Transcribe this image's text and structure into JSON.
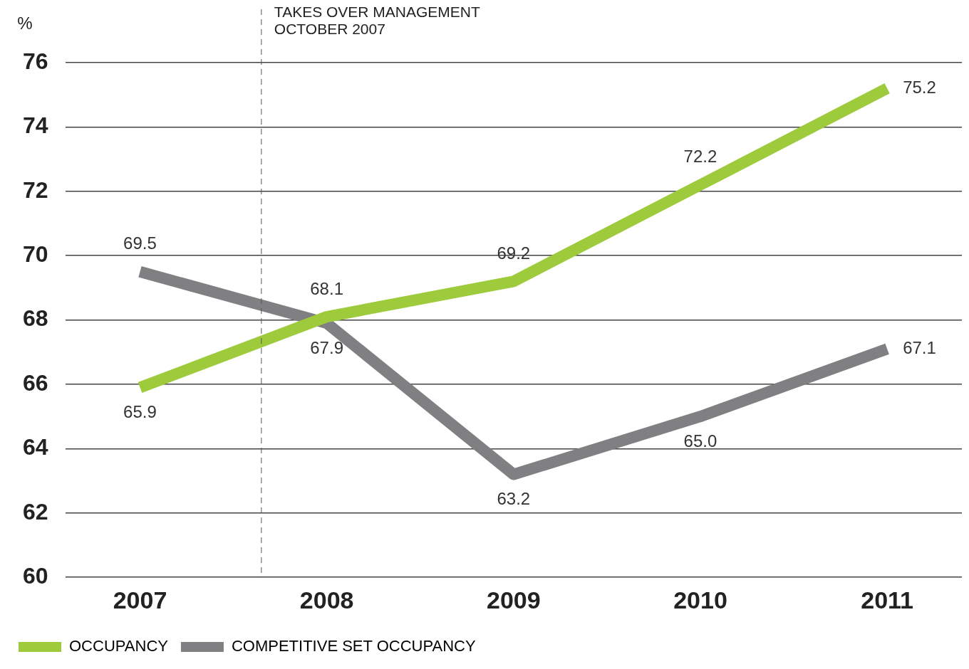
{
  "chart_data": {
    "type": "line",
    "ylabel": "%",
    "x": [
      2007,
      2008,
      2009,
      2010,
      2011
    ],
    "series": [
      {
        "name": "OCCUPANCY",
        "color": "#9dcb3b",
        "values": [
          65.9,
          68.1,
          69.2,
          72.2,
          75.2
        ],
        "value_labels": [
          "65.9",
          "68.1",
          "69.2",
          "72.2",
          "75.2"
        ]
      },
      {
        "name": "COMPETITIVE SET OCCUPANCY",
        "color": "#808083",
        "values": [
          69.5,
          67.9,
          63.2,
          65.0,
          67.1
        ],
        "value_labels": [
          "69.5",
          "67.9",
          "63.2",
          "65.0",
          "67.1"
        ]
      }
    ],
    "xlim": [
      2006.6,
      2011.4
    ],
    "xticks": [
      2007,
      2008,
      2009,
      2010,
      2011
    ],
    "ylim": [
      60,
      76
    ],
    "yticks": [
      60,
      62,
      64,
      66,
      68,
      70,
      72,
      74,
      76
    ],
    "ref_lines": [
      {
        "axis": "x",
        "value": 2007.65,
        "label": "TAKES OVER MANAGEMENT\nOCTOBER 2007",
        "line_style": "dashed",
        "color": "#555555"
      }
    ],
    "grid": "y",
    "legend": "bottom left",
    "marker": "none",
    "line_style": "solid"
  }
}
